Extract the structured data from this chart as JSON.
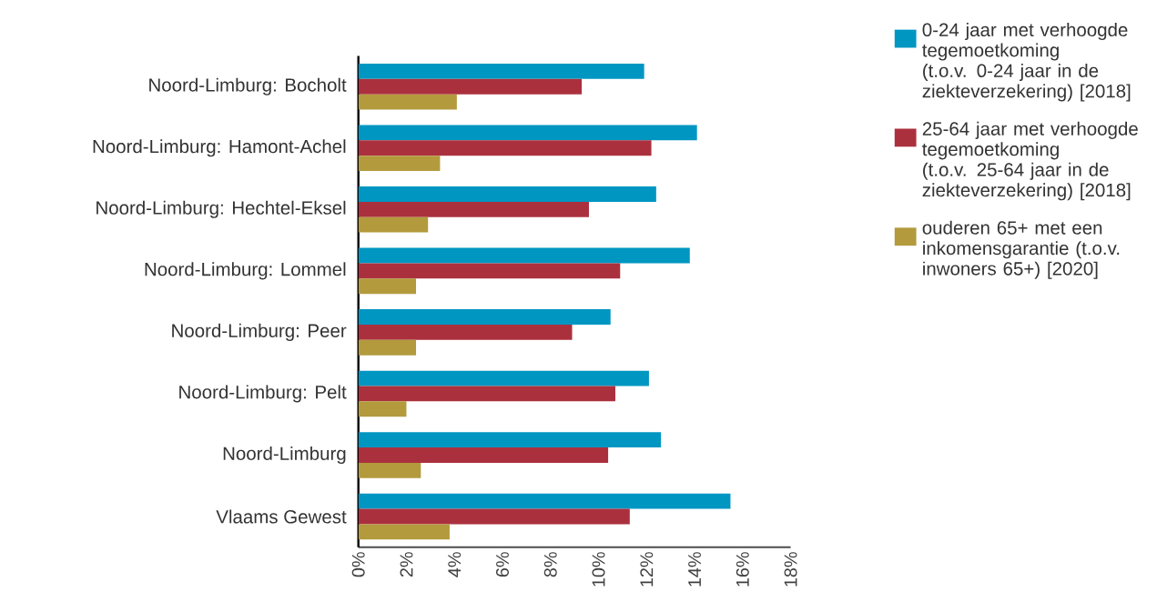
{
  "chart_data": {
    "type": "bar",
    "orientation": "horizontal",
    "categories": [
      "Noord-Limburg:  Bocholt",
      "Noord-Limburg:  Hamont-Achel",
      "Noord-Limburg:  Hechtel-Eksel",
      "Noord-Limburg:  Lommel",
      "Noord-Limburg:  Peer",
      "Noord-Limburg:  Pelt",
      "Noord-Limburg",
      "Vlaams  Gewest"
    ],
    "series": [
      {
        "name": "0-24 jaar met verhoogde tegemoetkoming (t.o.v. 0-24 jaar in de ziekteverzekering) [2018]",
        "color": "#0096c2",
        "values": [
          11.9,
          14.1,
          12.4,
          13.8,
          10.5,
          12.1,
          12.6,
          15.5
        ]
      },
      {
        "name": "25-64 jaar met verhoogde tegemoetkoming (t.o.v. 25-64 jaar in de ziekteverzekering) [2018]",
        "color": "#ab303e",
        "values": [
          9.3,
          12.2,
          9.6,
          10.9,
          8.9,
          10.7,
          10.4,
          11.3
        ]
      },
      {
        "name": "ouderen 65+ met een inkomensgarantie (t.o.v. inwoners 65+) [2020]",
        "color": "#b39a3d",
        "values": [
          4.1,
          3.4,
          2.9,
          2.4,
          2.4,
          2.0,
          2.6,
          3.8
        ]
      }
    ],
    "xlim": [
      0,
      18
    ],
    "xticks": [
      {
        "value": 0,
        "label": "0%"
      },
      {
        "value": 2,
        "label": "2%"
      },
      {
        "value": 4,
        "label": "4%"
      },
      {
        "value": 6,
        "label": "6%"
      },
      {
        "value": 8,
        "label": "8%"
      },
      {
        "value": 10,
        "label": "10%"
      },
      {
        "value": 12,
        "label": "12%"
      },
      {
        "value": 14,
        "label": "14%"
      },
      {
        "value": 16,
        "label": "16%"
      },
      {
        "value": 18,
        "label": "18%"
      }
    ],
    "legend": "right"
  }
}
